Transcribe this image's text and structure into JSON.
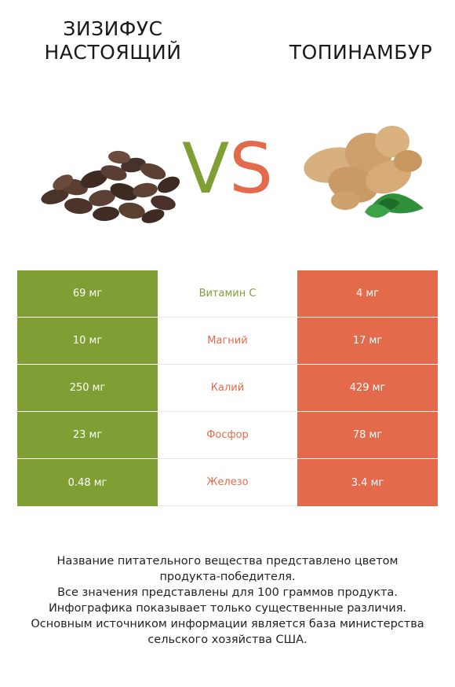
{
  "header": {
    "left_title_line1": "ЗИЗИФУС",
    "left_title_line2": "НАСТОЯЩИЙ",
    "right_title": "ТОПИНАМБУР",
    "vs_v": "V",
    "vs_s": "S"
  },
  "colors": {
    "left_accent": "#7f9e33",
    "right_accent": "#e36b4c"
  },
  "rows": [
    {
      "left": "69 мг",
      "nutrient": "Витамин C",
      "right": "4 мг",
      "winner_color": "#7f9e33"
    },
    {
      "left": "10 мг",
      "nutrient": "Магний",
      "right": "17 мг",
      "winner_color": "#e36b4c"
    },
    {
      "left": "250 мг",
      "nutrient": "Калий",
      "right": "429 мг",
      "winner_color": "#e36b4c"
    },
    {
      "left": "23 мг",
      "nutrient": "Фосфор",
      "right": "78 мг",
      "winner_color": "#e36b4c"
    },
    {
      "left": "0.48 мг",
      "nutrient": "Железо",
      "right": "3.4 мг",
      "winner_color": "#e36b4c"
    }
  ],
  "footer": {
    "line1": "Название питательного вещества представлено цветом",
    "line2": "продукта-победителя.",
    "line3": "Все значения представлены для 100 граммов продукта.",
    "line4": "Инфографика показывает только существенные различия.",
    "line5": "Основным источником информации является база министерства",
    "line6": "сельского хозяйства США."
  }
}
